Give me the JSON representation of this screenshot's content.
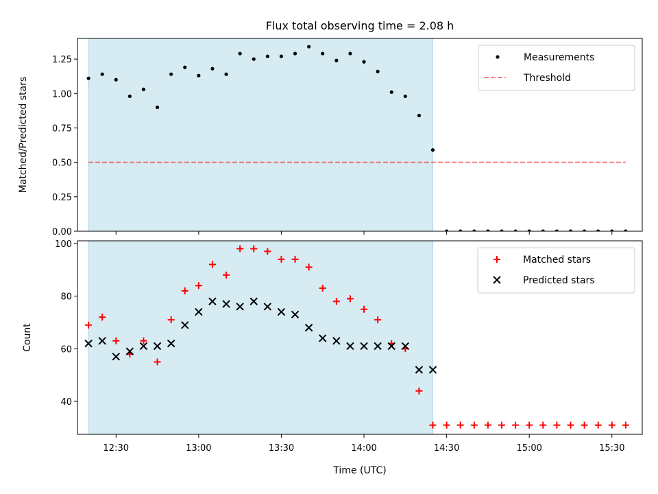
{
  "title": "Flux total observing time = 2.08 h",
  "xlabel": "Time (UTC)",
  "x_ticks": [
    "12:30",
    "13:00",
    "13:30",
    "14:00",
    "14:30",
    "15:00",
    "15:30"
  ],
  "colors": {
    "shade": "#add8e6",
    "threshold": "#ff0000",
    "matched": "#ff0000",
    "predicted": "#000000",
    "measurements": "#000000"
  },
  "chart_data": [
    {
      "type": "scatter",
      "ylabel": "Matched/Predicted stars",
      "xlim": [
        "12:16",
        "15:41"
      ],
      "ylim": [
        0.0,
        1.4
      ],
      "y_ticks": [
        "0.00",
        "0.25",
        "0.50",
        "0.75",
        "1.00",
        "1.25"
      ],
      "shaded_span": [
        "12:20",
        "14:25"
      ],
      "legend_position": "upper right",
      "legend": [
        "Measurements",
        "Threshold"
      ],
      "series": [
        {
          "name": "Measurements",
          "marker": "dot",
          "x": [
            "12:20",
            "12:25",
            "12:30",
            "12:35",
            "12:40",
            "12:45",
            "12:50",
            "12:55",
            "13:00",
            "13:05",
            "13:10",
            "13:15",
            "13:20",
            "13:25",
            "13:30",
            "13:35",
            "13:40",
            "13:45",
            "13:50",
            "13:55",
            "14:00",
            "14:05",
            "14:10",
            "14:15",
            "14:20",
            "14:25",
            "14:30",
            "14:35",
            "14:40",
            "14:45",
            "14:50",
            "14:55",
            "15:00",
            "15:05",
            "15:10",
            "15:15",
            "15:20",
            "15:25",
            "15:30",
            "15:35"
          ],
          "y": [
            1.11,
            1.14,
            1.1,
            0.98,
            1.03,
            0.9,
            1.14,
            1.19,
            1.13,
            1.18,
            1.14,
            1.29,
            1.25,
            1.27,
            1.27,
            1.29,
            1.34,
            1.29,
            1.24,
            1.29,
            1.23,
            1.16,
            1.01,
            0.98,
            0.84,
            0.59,
            0,
            0,
            0,
            0,
            0,
            0,
            0,
            0,
            0,
            0,
            0,
            0,
            0,
            0
          ]
        },
        {
          "name": "Threshold",
          "style": "dashed",
          "x": [
            "12:20",
            "15:35"
          ],
          "y": [
            0.5,
            0.5
          ]
        }
      ]
    },
    {
      "type": "scatter",
      "ylabel": "Count",
      "xlim": [
        "12:16",
        "15:41"
      ],
      "ylim": [
        27.5,
        101
      ],
      "y_ticks": [
        "40",
        "60",
        "80",
        "100"
      ],
      "shaded_span": [
        "12:20",
        "14:25"
      ],
      "legend_position": "upper right",
      "legend": [
        "Matched stars",
        "Predicted stars"
      ],
      "series": [
        {
          "name": "Matched stars",
          "marker": "plus",
          "x": [
            "12:20",
            "12:25",
            "12:30",
            "12:35",
            "12:40",
            "12:45",
            "12:50",
            "12:55",
            "13:00",
            "13:05",
            "13:10",
            "13:15",
            "13:20",
            "13:25",
            "13:30",
            "13:35",
            "13:40",
            "13:45",
            "13:50",
            "13:55",
            "14:00",
            "14:05",
            "14:10",
            "14:15",
            "14:20",
            "14:25",
            "14:30",
            "14:35",
            "14:40",
            "14:45",
            "14:50",
            "14:55",
            "15:00",
            "15:05",
            "15:10",
            "15:15",
            "15:20",
            "15:25",
            "15:30",
            "15:35"
          ],
          "y": [
            69,
            72,
            63,
            58,
            63,
            55,
            71,
            82,
            84,
            92,
            88,
            98,
            98,
            97,
            94,
            94,
            91,
            83,
            78,
            79,
            75,
            71,
            62,
            60,
            44,
            31,
            31,
            31,
            31,
            31,
            31,
            31,
            31,
            31,
            31,
            31,
            31,
            31,
            31,
            31
          ]
        },
        {
          "name": "Predicted stars",
          "marker": "x",
          "x": [
            "12:20",
            "12:25",
            "12:30",
            "12:35",
            "12:40",
            "12:45",
            "12:50",
            "12:55",
            "13:00",
            "13:05",
            "13:10",
            "13:15",
            "13:20",
            "13:25",
            "13:30",
            "13:35",
            "13:40",
            "13:45",
            "13:50",
            "13:55",
            "14:00",
            "14:05",
            "14:10",
            "14:15",
            "14:20",
            "14:25"
          ],
          "y": [
            62,
            63,
            57,
            59,
            61,
            61,
            62,
            69,
            74,
            78,
            77,
            76,
            78,
            76,
            74,
            73,
            68,
            64,
            63,
            61,
            61,
            61,
            61,
            61,
            52,
            52
          ]
        }
      ]
    }
  ]
}
